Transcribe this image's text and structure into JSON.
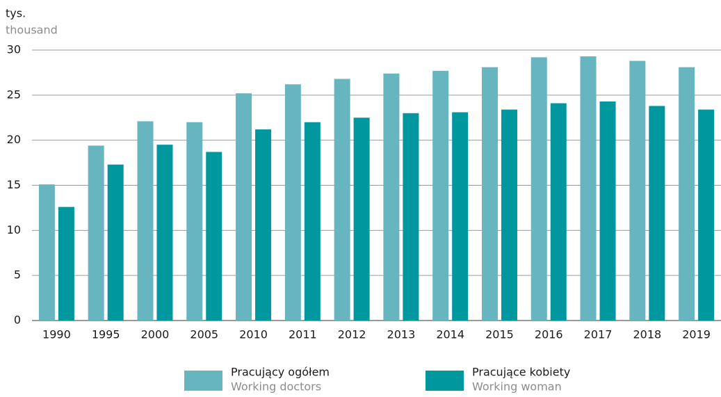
{
  "chart_data": {
    "type": "bar",
    "y_label": "tys.",
    "y_label_en": "thousand",
    "categories": [
      "1990",
      "1995",
      "2000",
      "2005",
      "2010",
      "2011",
      "2012",
      "2013",
      "2014",
      "2015",
      "2016",
      "2017",
      "2018",
      "2019"
    ],
    "series": [
      {
        "name": "Pracujący ogółem",
        "name_en": "Working doctors",
        "color": "#67b5bf",
        "values": [
          15.1,
          19.4,
          22.1,
          22.0,
          25.2,
          26.2,
          26.8,
          27.4,
          27.7,
          28.1,
          29.2,
          29.3,
          28.8,
          28.1
        ]
      },
      {
        "name": "Pracujące kobiety",
        "name_en": "Working woman",
        "color": "#00979f",
        "values": [
          12.6,
          17.3,
          19.5,
          18.7,
          21.2,
          22.0,
          22.5,
          23.0,
          23.1,
          23.4,
          24.1,
          24.3,
          23.8,
          23.4
        ]
      }
    ],
    "ylim": [
      0,
      30
    ],
    "yticks": [
      0,
      5,
      10,
      15,
      20,
      25,
      30
    ],
    "grid": true
  }
}
